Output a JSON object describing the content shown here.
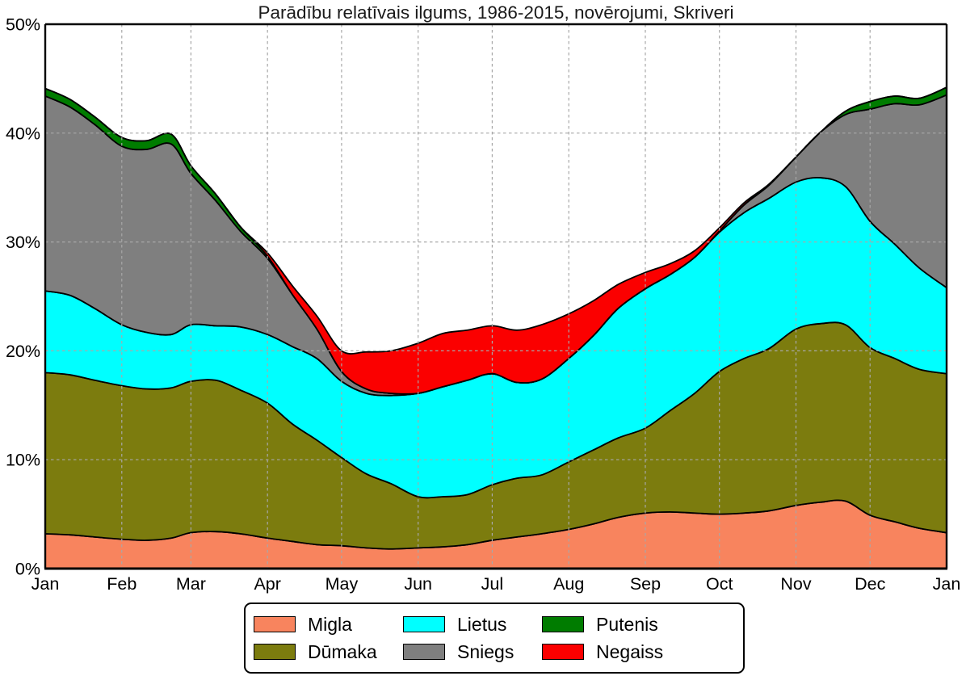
{
  "title": "Parādību relatīvais ilgums, 1986-2015, novērojumi, Skriveri",
  "chart_data": {
    "type": "area",
    "stacked": true,
    "title": "Parādību relatīvais ilgums, 1986-2015, novērojumi, Skriveri",
    "xlabel": "",
    "ylabel": "",
    "ylim": [
      0,
      50
    ],
    "y_ticks": [
      0,
      10,
      20,
      30,
      40,
      50
    ],
    "y_tick_labels": [
      "0%",
      "10%",
      "20%",
      "30%",
      "40%",
      "50%"
    ],
    "x_unit": "day_of_year",
    "x_range_days": [
      0,
      365
    ],
    "x_tick_days": [
      0,
      31,
      59,
      90,
      120,
      151,
      181,
      212,
      243,
      273,
      304,
      334,
      365
    ],
    "x_tick_labels": [
      "Jan",
      "Feb",
      "Mar",
      "Apr",
      "May",
      "Jun",
      "Jul",
      "Aug",
      "Sep",
      "Oct",
      "Nov",
      "Dec",
      "Jan"
    ],
    "grid": "dashed gray, both axes, drawn above areas",
    "legend_position": "bottom-center, 2 rows x 3 columns",
    "x_days": [
      0,
      10,
      20,
      31,
      41,
      51,
      59,
      69,
      79,
      90,
      100,
      110,
      120,
      130,
      140,
      151,
      161,
      171,
      181,
      191,
      201,
      212,
      222,
      232,
      243,
      253,
      263,
      273,
      283,
      293,
      304,
      314,
      324,
      334,
      344,
      354,
      365
    ],
    "series": [
      {
        "name": "Migla",
        "color": "#F8845E",
        "values": [
          3.2,
          3.1,
          2.9,
          2.7,
          2.6,
          2.8,
          3.3,
          3.4,
          3.2,
          2.8,
          2.5,
          2.2,
          2.1,
          1.9,
          1.8,
          1.9,
          2.0,
          2.2,
          2.6,
          2.9,
          3.2,
          3.6,
          4.1,
          4.7,
          5.1,
          5.2,
          5.1,
          5.0,
          5.1,
          5.3,
          5.8,
          6.1,
          6.2,
          4.9,
          4.3,
          3.7,
          3.3
        ]
      },
      {
        "name": "Dūmaka",
        "color": "#7C7C0E",
        "values": [
          14.8,
          14.7,
          14.4,
          14.1,
          13.9,
          13.8,
          13.9,
          13.9,
          13.2,
          12.4,
          10.8,
          9.6,
          8.1,
          6.8,
          6.0,
          4.7,
          4.6,
          4.6,
          5.1,
          5.4,
          5.4,
          6.2,
          6.8,
          7.3,
          7.8,
          9.3,
          11.0,
          13.1,
          14.2,
          14.9,
          16.2,
          16.4,
          16.2,
          15.4,
          15.0,
          14.6,
          14.6
        ]
      },
      {
        "name": "Lietus",
        "color": "#00FFFF",
        "values": [
          7.5,
          7.3,
          6.6,
          5.6,
          5.2,
          4.9,
          5.2,
          5.0,
          5.8,
          6.3,
          7.1,
          7.5,
          7.0,
          7.4,
          8.1,
          9.5,
          10.1,
          10.5,
          10.2,
          8.8,
          8.8,
          9.5,
          10.5,
          11.9,
          12.8,
          12.5,
          12.5,
          12.8,
          13.4,
          13.8,
          13.5,
          13.4,
          12.7,
          11.6,
          10.5,
          9.3,
          7.9
        ]
      },
      {
        "name": "Sniegs",
        "color": "#7F7F7F",
        "values": [
          17.9,
          17.3,
          16.9,
          16.4,
          16.8,
          17.5,
          13.9,
          11.5,
          8.8,
          7.0,
          4.8,
          2.7,
          0.9,
          0.4,
          0.2,
          0,
          0,
          0,
          0,
          0,
          0,
          0,
          0,
          0,
          0,
          0,
          0,
          0.1,
          0.7,
          1.2,
          2.3,
          4.2,
          6.6,
          10.3,
          12.9,
          15.0,
          17.7
        ]
      },
      {
        "name": "Putenis",
        "color": "#007C00",
        "values": [
          0.7,
          0.7,
          0.7,
          0.8,
          0.8,
          0.9,
          0.7,
          0.6,
          0.4,
          0.2,
          0,
          0,
          0,
          0,
          0,
          0,
          0,
          0,
          0,
          0,
          0,
          0,
          0,
          0,
          0,
          0,
          0,
          0,
          0,
          0,
          0,
          0,
          0.3,
          0.7,
          0.7,
          0.6,
          0.7
        ]
      },
      {
        "name": "Negaiss",
        "color": "#FB0000",
        "values": [
          0,
          0,
          0,
          0,
          0,
          0,
          0,
          0,
          0,
          0.3,
          0.8,
          1.2,
          1.9,
          3.4,
          3.9,
          4.6,
          4.9,
          4.6,
          4.4,
          4.8,
          5.0,
          4.1,
          3.2,
          2.2,
          1.5,
          1.0,
          0.6,
          0.3,
          0.2,
          0.1,
          0,
          0,
          0,
          0,
          0,
          0,
          0
        ]
      }
    ]
  }
}
